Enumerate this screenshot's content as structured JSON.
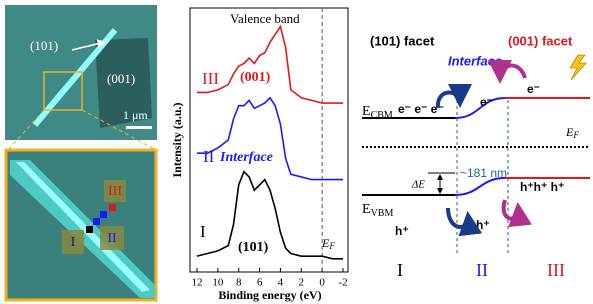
{
  "micrograph": {
    "facet_101": "(101)",
    "facet_001": "(001)",
    "scale_bar": "1 μm",
    "inset_regions": [
      "I",
      "II",
      "III"
    ]
  },
  "chart_data": {
    "type": "line",
    "title": "Valence band",
    "x_label": "Binding energy (eV)",
    "y_label": "Intensity (a.u.)",
    "x": [
      12,
      11,
      10,
      9,
      8.5,
      8,
      7.5,
      7,
      6.5,
      6,
      5.5,
      5,
      4.5,
      4,
      3.5,
      3,
      2,
      1,
      0,
      -1,
      -2
    ],
    "xlim": [
      12,
      -2
    ],
    "xticks": [
      12,
      10,
      8,
      6,
      4,
      2,
      0,
      -2
    ],
    "ylim": [
      0,
      100
    ],
    "reference_line": {
      "x": 0,
      "label": "E",
      "label_sub": "F"
    },
    "series": [
      {
        "name": "(101)",
        "region": "I",
        "color": "#000000",
        "values": [
          6,
          7,
          8,
          10,
          18,
          33,
          38,
          36,
          31,
          33,
          35,
          31,
          24,
          15,
          9,
          7,
          6,
          6,
          6,
          5,
          5
        ]
      },
      {
        "name": "Interface",
        "region": "II",
        "color": "#1a1aff",
        "values": [
          45,
          45,
          47,
          50,
          58,
          63,
          63,
          65,
          62,
          63,
          64,
          66,
          63,
          56,
          43,
          37,
          36,
          35,
          35,
          35,
          35
        ]
      },
      {
        "name": "(001)",
        "region": "III",
        "color": "#e0191e",
        "values": [
          68,
          68,
          69,
          71,
          75,
          78,
          79,
          81,
          79,
          82,
          83,
          87,
          90,
          93,
          85,
          69,
          66,
          65,
          64,
          64,
          64
        ]
      }
    ]
  },
  "band_diagram": {
    "left_title": "(101) facet",
    "right_title": "(001) facet",
    "interface": "Interface",
    "cbm": {
      "main": "E",
      "sub": "CBM"
    },
    "vbm": {
      "main": "E",
      "sub": "VBM"
    },
    "fermi": {
      "main": "E",
      "sub": "F"
    },
    "width": "~181 nm",
    "delta_e": "ΔE",
    "electrons_left": "e⁻ e⁻ e⁻",
    "electron_interface": "e⁻",
    "electron_right": "e⁻",
    "holes_left": "h⁺",
    "hole_interface": "h⁺",
    "holes_right": "h⁺h⁺ h⁺",
    "regions": [
      "I",
      "II",
      "III"
    ]
  }
}
